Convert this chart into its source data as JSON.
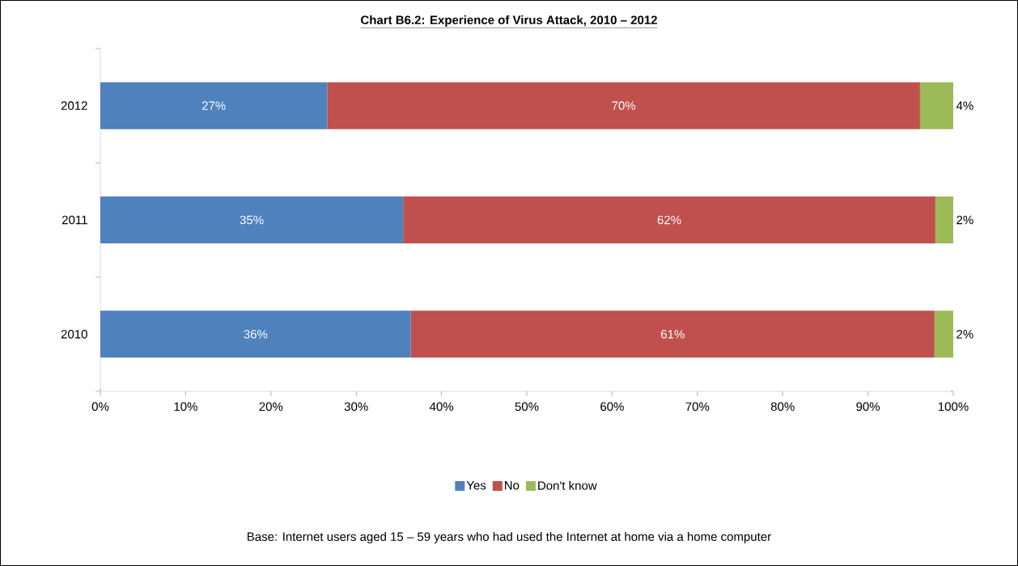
{
  "chart_data": {
    "type": "bar",
    "orientation": "horizontal",
    "stacked": true,
    "title": "Chart B6.2: Experience of Virus Attack, 2010 – 2012",
    "categories": [
      "2012",
      "2011",
      "2010"
    ],
    "series": [
      {
        "name": "Yes",
        "color": "#4f81bd",
        "values": [
          26.6,
          35.5,
          36.4
        ],
        "value_labels": [
          "27%",
          "35%",
          "36%"
        ]
      },
      {
        "name": "No",
        "color": "#c0504d",
        "values": [
          69.5,
          62.4,
          61.4
        ],
        "value_labels": [
          "70%",
          "62%",
          "61%"
        ]
      },
      {
        "name": "Don't know",
        "color": "#9bbb59",
        "values": [
          3.9,
          2.1,
          2.2
        ],
        "value_labels": [
          "4%",
          "2%",
          "2%"
        ]
      }
    ],
    "xlim": [
      0,
      100
    ],
    "xticks": [
      {
        "value": 0,
        "label": "0%"
      },
      {
        "value": 10,
        "label": "10%"
      },
      {
        "value": 20,
        "label": "20%"
      },
      {
        "value": 30,
        "label": "30%"
      },
      {
        "value": 40,
        "label": "40%"
      },
      {
        "value": 50,
        "label": "50%"
      },
      {
        "value": 60,
        "label": "60%"
      },
      {
        "value": 70,
        "label": "70%"
      },
      {
        "value": 80,
        "label": "80%"
      },
      {
        "value": 90,
        "label": "90%"
      },
      {
        "value": 100,
        "label": "100%"
      }
    ],
    "legend": "bottom",
    "annotations": [
      "Base: Internet users aged 15 – 59 years who had used the Internet at home via a home computer"
    ]
  }
}
